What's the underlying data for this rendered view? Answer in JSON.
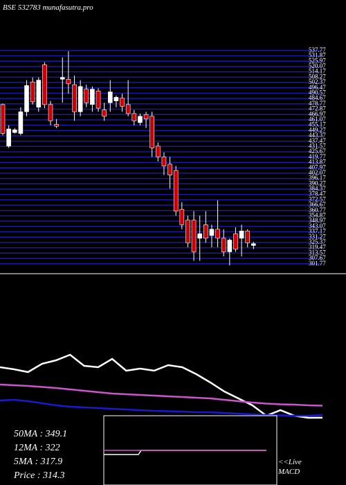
{
  "chart_data": [
    {
      "type": "candlestick",
      "title": "BSE 532783 munafasutra.pro",
      "ylim": [
        300,
        540
      ],
      "yticks": [
        301.77,
        307.67,
        313.57,
        319.47,
        325.37,
        331.27,
        337.17,
        343.07,
        348.97,
        354.87,
        360.77,
        366.67,
        372.57,
        378.47,
        384.37,
        390.27,
        396.17,
        402.07,
        407.97,
        413.87,
        419.77,
        425.67,
        431.57,
        437.47,
        443.37,
        449.27,
        455.17,
        461.07,
        466.97,
        472.87,
        478.77,
        484.67,
        490.57,
        496.47,
        502.37,
        508.27,
        514.17,
        520.07,
        525.97,
        531.87,
        537.77
      ],
      "grid": true,
      "grid_color": "#1a1aa8",
      "up_color": "#ffffff",
      "down_color": "#cc0000",
      "open": [
        478,
        432,
        447,
        446,
        470,
        503,
        475,
        522,
        478,
        456,
        506,
        506,
        500,
        470,
        495,
        478,
        493,
        472,
        480,
        482,
        485,
        478,
        468,
        458,
        467,
        465,
        432,
        420,
        412,
        405,
        362,
        350,
        350,
        330,
        345,
        333,
        340,
        330,
        315,
        335,
        330,
        338,
        322
      ],
      "high": [
        479,
        455,
        452,
        475,
        505,
        508,
        508,
        525,
        482,
        462,
        530,
        537,
        510,
        505,
        500,
        498,
        496,
        480,
        505,
        488,
        490,
        505,
        472,
        468,
        470,
        470,
        436,
        425,
        420,
        410,
        370,
        355,
        360,
        355,
        360,
        345,
        372,
        340,
        330,
        342,
        345,
        340,
        326
      ],
      "low": [
        444,
        430,
        446,
        444,
        465,
        478,
        470,
        474,
        455,
        452,
        480,
        490,
        460,
        465,
        475,
        470,
        470,
        460,
        470,
        475,
        470,
        465,
        455,
        455,
        452,
        420,
        415,
        400,
        385,
        355,
        340,
        320,
        305,
        305,
        325,
        320,
        320,
        310,
        300,
        315,
        310,
        320,
        318
      ],
      "close": [
        446,
        451,
        450,
        470,
        499,
        481,
        505,
        478,
        460,
        454,
        508,
        501,
        470,
        498,
        480,
        495,
        474,
        465,
        492,
        486,
        476,
        468,
        460,
        465,
        462,
        430,
        420,
        410,
        400,
        360,
        345,
        325,
        315,
        335,
        330,
        340,
        330,
        315,
        328,
        318,
        338,
        325,
        324
      ]
    },
    {
      "type": "line",
      "ylim": [
        300,
        520
      ],
      "series": [
        {
          "name": "Price",
          "color": "#ffffff",
          "values": [
            460,
            454,
            446,
            470,
            480,
            496,
            464,
            460,
            484,
            450,
            456,
            450,
            466,
            460,
            440,
            416,
            390,
            370,
            350,
            320,
            336,
            320,
            314,
            314.3
          ]
        },
        {
          "name": "50MA",
          "color": "#cc55cc",
          "values": [
            410,
            408,
            406,
            403,
            400,
            396,
            392,
            388,
            384,
            382,
            380,
            378,
            376,
            374,
            372,
            370,
            366,
            362,
            358,
            355,
            353,
            352,
            350,
            349.1
          ]
        },
        {
          "name": "12MA",
          "color": "#1a1acc",
          "values": [
            364,
            366,
            362,
            356,
            350,
            346,
            344,
            342,
            340,
            338,
            336,
            334,
            333,
            332,
            330,
            330,
            328,
            326,
            324,
            322,
            321,
            320,
            320,
            322
          ]
        }
      ],
      "annotations": [
        "50MA : 349.1",
        "12MA : 322",
        "5MA : 317.9",
        "Price   : 314.3",
        "<<Live",
        "MACD"
      ]
    }
  ]
}
